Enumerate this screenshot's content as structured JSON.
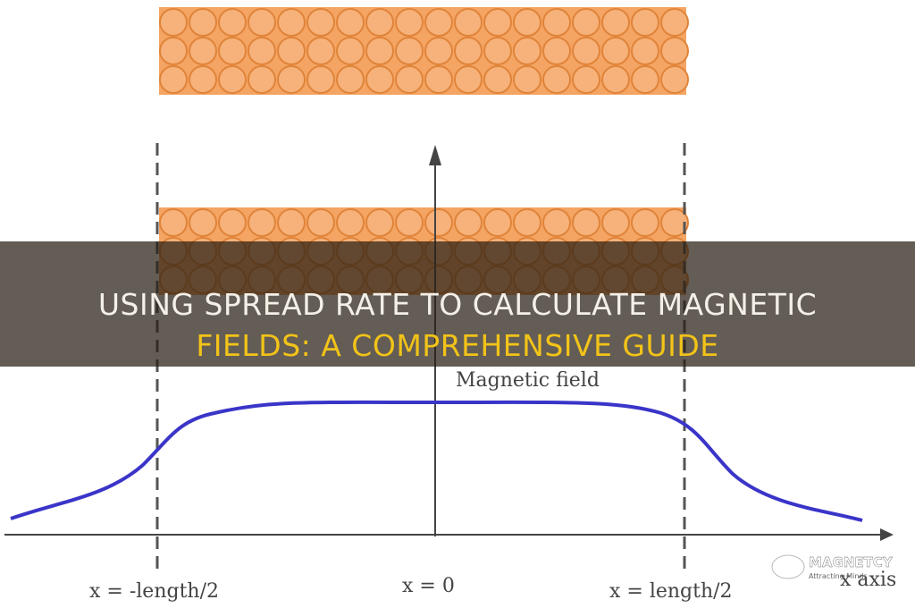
{
  "title": {
    "line1": "USING SPREAD RATE TO CALCULATE MAGNETIC",
    "line2": "FIELDS: A COMPREHENSIVE GUIDE"
  },
  "diagram": {
    "curve_label": "Magnetic field",
    "left_label": "x = -length/2",
    "center_label": "x = 0",
    "right_label": "x = length/2",
    "axis_label": "x axis"
  },
  "logo": {
    "name": "MAGNETCY",
    "tagline": "Attracting Minds"
  }
}
